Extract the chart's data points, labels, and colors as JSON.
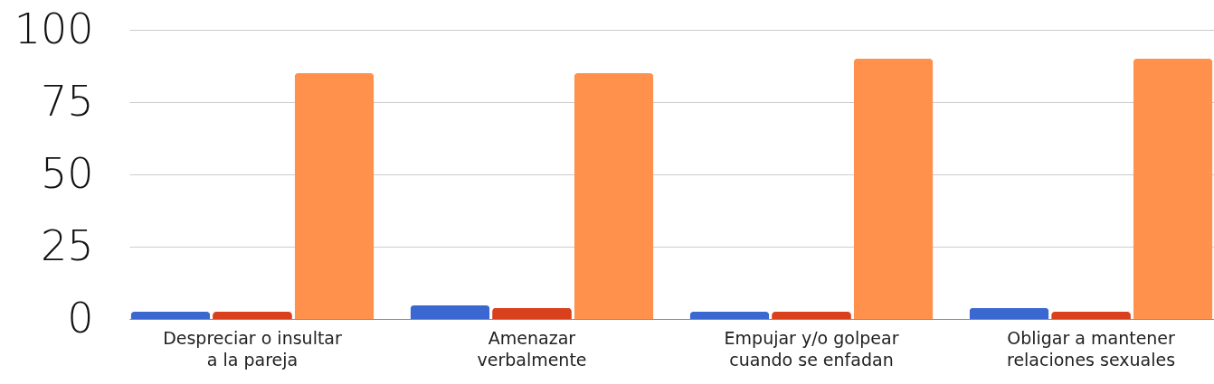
{
  "chart_data": {
    "type": "bar",
    "categories": [
      "Despreciar o insultar\na la pareja",
      "Amenazar\nverbalmente",
      "Empujar y/o golpear\ncuando se enfadan",
      "Obligar a mantener\nrelaciones sexuales"
    ],
    "series": [
      {
        "color": "#3a68d0",
        "values": [
          2.5,
          4.7,
          2.5,
          3.8
        ]
      },
      {
        "color": "#d9401c",
        "values": [
          2.5,
          3.8,
          2.5,
          2.5
        ]
      },
      {
        "color": "#ff914d",
        "values": [
          85,
          85,
          90,
          90
        ]
      }
    ],
    "ylim": [
      0,
      100
    ],
    "yticks": [
      0,
      25,
      50,
      75,
      100
    ],
    "grid": "y",
    "legend": false
  }
}
